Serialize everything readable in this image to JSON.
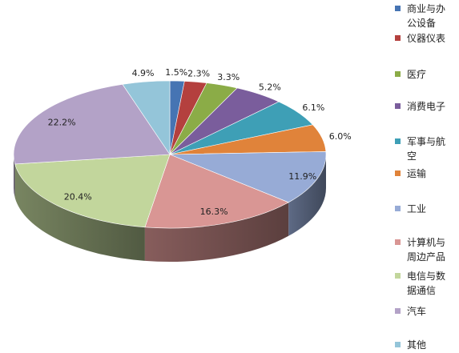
{
  "chart_data": {
    "type": "pie",
    "categories": [
      "商业与办公设备",
      "仪器仪表",
      "医疗",
      "消费电子",
      "军事与航空",
      "运输",
      "工业",
      "计算机与周边产品",
      "电信与数据通信",
      "汽车",
      "其他"
    ],
    "legend_lines": [
      [
        "商业与办",
        "公设备"
      ],
      [
        "仪器仪表"
      ],
      [
        "医疗"
      ],
      [
        "消费电子"
      ],
      [
        "军事与航",
        "空"
      ],
      [
        "运输"
      ],
      [
        "工业"
      ],
      [
        "计算机与",
        "周边产品"
      ],
      [
        "电信与数",
        "据通信"
      ],
      [
        "汽车"
      ],
      [
        "其他"
      ]
    ],
    "values": [
      1.5,
      2.3,
      3.3,
      5.2,
      6.1,
      6.0,
      11.9,
      16.3,
      20.4,
      22.2,
      4.9
    ],
    "labels": [
      "1.5%",
      "2.3%",
      "3.3%",
      "5.2%",
      "6.1%",
      "6.0%",
      "11.9%",
      "16.3%",
      "20.4%",
      "22.2%",
      "4.9%"
    ],
    "colors": [
      "#4674b3",
      "#b4403e",
      "#8bac47",
      "#7a5d9c",
      "#3e9fb6",
      "#e0833a",
      "#97abd6",
      "#d99694",
      "#c2d69c",
      "#b3a2c7",
      "#94c5d9"
    ],
    "legend_placement": "right",
    "style": "3d"
  }
}
